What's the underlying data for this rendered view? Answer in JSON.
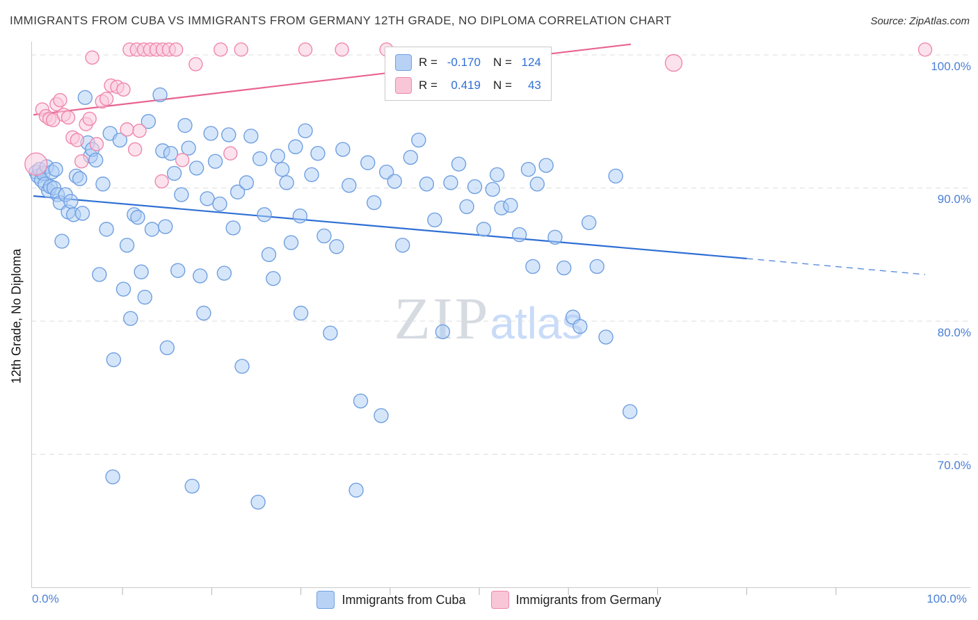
{
  "header": {
    "title": "IMMIGRANTS FROM CUBA VS IMMIGRANTS FROM GERMANY 12TH GRADE, NO DIPLOMA CORRELATION CHART",
    "source": "Source: ZipAtlas.com"
  },
  "watermark": {
    "zip": "ZIP",
    "atlas": "atlas"
  },
  "axes": {
    "y_label": "12th Grade, No Diploma",
    "y_ticks": [
      "100.0%",
      "90.0%",
      "80.0%",
      "70.0%"
    ],
    "x_min_label": "0.0%",
    "x_max_label": "100.0%"
  },
  "legend_box": {
    "rows": [
      {
        "series": "cuba",
        "r_label": "R =",
        "r_value": "-0.170",
        "n_label": "N =",
        "n_value": "124"
      },
      {
        "series": "germany",
        "r_label": "R =",
        "r_value": "0.419",
        "n_label": "N =",
        "n_value": "43"
      }
    ]
  },
  "bottom_legend": [
    {
      "series": "cuba",
      "label": "Immigrants from Cuba"
    },
    {
      "series": "germany",
      "label": "Immigrants from Germany"
    }
  ],
  "colors": {
    "cuba_fill": "#b8d2f5",
    "cuba_stroke": "#6f9fe0",
    "germany_fill": "#f9c6d8",
    "germany_stroke": "#ef87ad",
    "trend_cuba": "#2e6fd4",
    "trend_germany": "#e8638f",
    "axis_label": "#4a7fd6"
  },
  "chart_data": {
    "type": "scatter",
    "title": "IMMIGRANTS FROM CUBA VS IMMIGRANTS FROM GERMANY 12TH GRADE, NO DIPLOMA CORRELATION CHART",
    "ylabel": "12th Grade, No Diploma",
    "x_range_pct": [
      0,
      100
    ],
    "y_range_pct": [
      60,
      101
    ],
    "y_gridlines_pct": [
      100,
      90,
      80,
      70
    ],
    "grid": "horizontal-dashed",
    "legend_position": "bottom-center",
    "watermark": "ZIPatlas",
    "series": [
      {
        "id": "cuba",
        "name": "Immigrants from Cuba",
        "R": -0.17,
        "N": 124,
        "radius": 10,
        "color_fill": "rgba(173,205,245,0.5)",
        "color_stroke": "#6f9fe0",
        "points": [
          [
            0.3,
            91.2
          ],
          [
            0.5,
            90.9
          ],
          [
            0.7,
            91.4
          ],
          [
            0.9,
            90.6
          ],
          [
            1.1,
            91.1
          ],
          [
            1.3,
            90.3
          ],
          [
            1.5,
            91.6
          ],
          [
            1.7,
            89.8
          ],
          [
            1.9,
            90.1
          ],
          [
            2.1,
            91.2
          ],
          [
            2.3,
            90.0
          ],
          [
            2.5,
            91.4
          ],
          [
            2.7,
            89.5
          ],
          [
            3.0,
            88.9
          ],
          [
            3.2,
            86.0
          ],
          [
            3.6,
            89.5
          ],
          [
            3.9,
            88.2
          ],
          [
            4.2,
            89.0
          ],
          [
            4.5,
            88.0
          ],
          [
            4.8,
            90.9
          ],
          [
            5.2,
            90.7
          ],
          [
            5.5,
            88.1
          ],
          [
            5.8,
            96.8
          ],
          [
            6.1,
            93.4
          ],
          [
            6.4,
            92.4
          ],
          [
            6.6,
            92.9
          ],
          [
            7.0,
            92.1
          ],
          [
            7.4,
            83.5
          ],
          [
            7.8,
            90.3
          ],
          [
            8.2,
            86.9
          ],
          [
            8.6,
            94.1
          ],
          [
            8.9,
            68.3
          ],
          [
            9.0,
            77.1
          ],
          [
            9.7,
            93.6
          ],
          [
            10.1,
            82.4
          ],
          [
            10.5,
            85.7
          ],
          [
            10.9,
            80.2
          ],
          [
            11.3,
            88.0
          ],
          [
            11.7,
            87.8
          ],
          [
            12.1,
            83.7
          ],
          [
            12.5,
            81.8
          ],
          [
            12.9,
            95.0
          ],
          [
            13.3,
            86.9
          ],
          [
            14.2,
            97.0
          ],
          [
            14.5,
            92.8
          ],
          [
            14.8,
            87.1
          ],
          [
            15.0,
            78.0
          ],
          [
            15.4,
            92.6
          ],
          [
            15.8,
            91.1
          ],
          [
            16.2,
            83.8
          ],
          [
            16.6,
            89.5
          ],
          [
            17.0,
            94.7
          ],
          [
            17.4,
            93.0
          ],
          [
            17.8,
            67.6
          ],
          [
            18.3,
            91.5
          ],
          [
            18.7,
            83.4
          ],
          [
            19.1,
            80.6
          ],
          [
            19.5,
            89.2
          ],
          [
            19.9,
            94.1
          ],
          [
            20.4,
            92.0
          ],
          [
            20.9,
            88.8
          ],
          [
            21.4,
            83.6
          ],
          [
            21.9,
            94.0
          ],
          [
            22.4,
            87.0
          ],
          [
            22.9,
            89.7
          ],
          [
            23.4,
            76.6
          ],
          [
            23.9,
            90.4
          ],
          [
            24.4,
            93.9
          ],
          [
            25.2,
            66.4
          ],
          [
            25.4,
            92.2
          ],
          [
            25.9,
            88.0
          ],
          [
            26.4,
            85.0
          ],
          [
            26.9,
            83.2
          ],
          [
            27.4,
            92.4
          ],
          [
            27.9,
            91.4
          ],
          [
            28.4,
            90.4
          ],
          [
            28.9,
            85.9
          ],
          [
            29.4,
            93.1
          ],
          [
            29.9,
            87.9
          ],
          [
            30.0,
            80.6
          ],
          [
            30.5,
            94.3
          ],
          [
            31.2,
            91.0
          ],
          [
            31.9,
            92.6
          ],
          [
            32.6,
            86.4
          ],
          [
            33.3,
            79.1
          ],
          [
            34.0,
            85.6
          ],
          [
            34.7,
            92.9
          ],
          [
            35.4,
            90.2
          ],
          [
            36.2,
            67.3
          ],
          [
            36.7,
            74.0
          ],
          [
            37.5,
            91.9
          ],
          [
            38.2,
            88.9
          ],
          [
            39.0,
            72.9
          ],
          [
            39.6,
            91.2
          ],
          [
            40.5,
            90.5
          ],
          [
            41.4,
            85.7
          ],
          [
            42.3,
            92.3
          ],
          [
            43.2,
            93.6
          ],
          [
            44.1,
            90.3
          ],
          [
            45.0,
            87.6
          ],
          [
            45.9,
            79.2
          ],
          [
            46.8,
            90.4
          ],
          [
            47.7,
            91.8
          ],
          [
            48.6,
            88.6
          ],
          [
            49.5,
            90.1
          ],
          [
            50.5,
            86.9
          ],
          [
            51.5,
            89.9
          ],
          [
            52.0,
            91.0
          ],
          [
            52.5,
            88.5
          ],
          [
            53.5,
            88.7
          ],
          [
            54.5,
            86.5
          ],
          [
            55.5,
            91.4
          ],
          [
            56.0,
            84.1
          ],
          [
            56.5,
            90.3
          ],
          [
            57.5,
            91.7
          ],
          [
            58.5,
            86.3
          ],
          [
            59.5,
            84.0
          ],
          [
            60.5,
            80.3
          ],
          [
            61.3,
            79.6
          ],
          [
            62.3,
            87.4
          ],
          [
            63.2,
            84.1
          ],
          [
            64.2,
            78.8
          ],
          [
            65.3,
            90.9
          ],
          [
            66.9,
            73.2
          ]
        ]
      },
      {
        "id": "germany",
        "name": "Immigrants from Germany",
        "R": 0.419,
        "N": 43,
        "radius": 9.5,
        "color_fill": "rgba(250,202,220,0.55)",
        "color_stroke": "#ef87ad",
        "points": [
          [
            0.3,
            91.8,
            16
          ],
          [
            1.0,
            95.9
          ],
          [
            1.4,
            95.4
          ],
          [
            1.8,
            95.2
          ],
          [
            2.2,
            95.1
          ],
          [
            2.6,
            96.3
          ],
          [
            3.0,
            96.6
          ],
          [
            3.4,
            95.5
          ],
          [
            3.9,
            95.3
          ],
          [
            4.4,
            93.8
          ],
          [
            4.9,
            93.6
          ],
          [
            5.4,
            92.0
          ],
          [
            5.9,
            94.8
          ],
          [
            6.3,
            95.2
          ],
          [
            6.6,
            99.8
          ],
          [
            7.1,
            93.3
          ],
          [
            7.7,
            96.5
          ],
          [
            8.2,
            96.7
          ],
          [
            8.7,
            97.7
          ],
          [
            9.4,
            97.6
          ],
          [
            10.1,
            97.4
          ],
          [
            10.5,
            94.4
          ],
          [
            11.4,
            92.9
          ],
          [
            11.9,
            94.3
          ],
          [
            14.4,
            90.5
          ],
          [
            16.7,
            92.1
          ],
          [
            18.2,
            99.3
          ],
          [
            22.1,
            92.6
          ],
          [
            10.8,
            100.4
          ],
          [
            11.6,
            100.4
          ],
          [
            12.4,
            100.4
          ],
          [
            13.1,
            100.4
          ],
          [
            13.8,
            100.4
          ],
          [
            14.5,
            100.4
          ],
          [
            15.2,
            100.4
          ],
          [
            16.0,
            100.4
          ],
          [
            21.0,
            100.4
          ],
          [
            23.3,
            100.4
          ],
          [
            30.5,
            100.4
          ],
          [
            34.6,
            100.4
          ],
          [
            39.6,
            100.4
          ],
          [
            100.0,
            100.4
          ],
          [
            71.8,
            99.4,
            12
          ]
        ]
      }
    ],
    "trendlines": [
      {
        "series": "Immigrants from Cuba",
        "color": "#2e6fd4",
        "solid": [
          [
            0,
            89.4
          ],
          [
            80,
            84.7
          ]
        ],
        "dashed": [
          [
            80,
            84.7
          ],
          [
            100,
            83.5
          ]
        ]
      },
      {
        "series": "Immigrants from Germany",
        "color": "#e8638f",
        "solid": [
          [
            0,
            95.5
          ],
          [
            67,
            100.8
          ]
        ]
      }
    ]
  }
}
